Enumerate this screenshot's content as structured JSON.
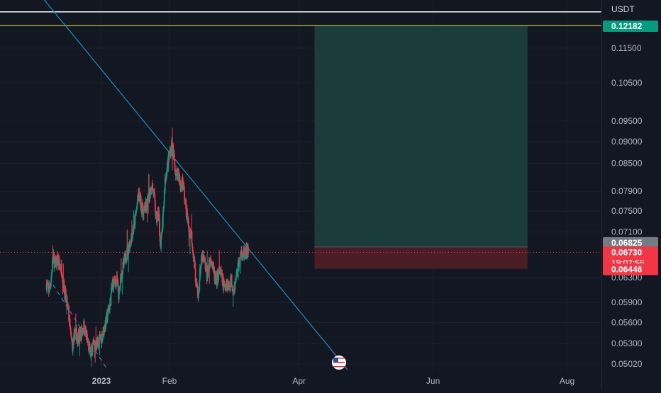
{
  "chart_data": {
    "type": "candlestick",
    "symbol_quote": "USDT",
    "y_scale": "log",
    "ylim": [
      0.0492,
      0.1305
    ],
    "y_ticks": [
      "0.11500",
      "0.10500",
      "0.09500",
      "0.09000",
      "0.08500",
      "0.07900",
      "0.07500",
      "0.07100",
      "0.06300",
      "0.05900",
      "0.05600",
      "0.05300",
      "0.05020"
    ],
    "x_ticks": [
      {
        "label": "2023",
        "date": "2023-01-01",
        "bold": true
      },
      {
        "label": "Feb",
        "date": "2023-02-01",
        "bold": false
      },
      {
        "label": "Apr",
        "date": "2023-04-01",
        "bold": false
      },
      {
        "label": "Jun",
        "date": "2023-06-01",
        "bold": false
      },
      {
        "label": "Aug",
        "date": "2023-08-01",
        "bold": false
      }
    ],
    "price_tags": [
      {
        "value": 0.12182,
        "label": "0.12182",
        "role": "take-profit",
        "color": "#089981"
      },
      {
        "value": 0.06825,
        "label": "0.06825",
        "role": "entry",
        "color": "#787b86"
      },
      {
        "value": 0.0673,
        "label": "0.06730",
        "sublabel": "19:07:55",
        "role": "last-price",
        "color": "#f23645"
      },
      {
        "value": 0.06446,
        "label": "0.06446",
        "role": "stop-loss",
        "color": "#f23645"
      }
    ],
    "horizontal_lines": [
      {
        "value": 0.1265,
        "color": "#ffffff"
      },
      {
        "value": 0.122,
        "color": "#e8e84a"
      }
    ],
    "position": {
      "start_date": "2023-04-08",
      "end_date": "2023-07-14",
      "entry": 0.06825,
      "target": 0.12182,
      "stop": 0.06446,
      "target_color": "#1a3c3a",
      "stop_color": "#4a1c24"
    },
    "trendlines": [
      {
        "from": {
          "date": "2022-11-24",
          "price": 0.142
        },
        "to": {
          "date": "2023-04-23",
          "price": 0.0495
        },
        "color": "#2196d3",
        "style": "solid"
      },
      {
        "from": {
          "date": "2022-12-10",
          "price": 0.0618
        },
        "to": {
          "date": "2023-01-03",
          "price": 0.0498
        },
        "color": "#2196d3",
        "style": "dashed"
      }
    ],
    "candles": {
      "timeframe": "4h",
      "first_date": "2022-12-07",
      "up_color": "#089981",
      "down_color": "#f23645",
      "anchors": [
        [
          "2022-12-07",
          0.062
        ],
        [
          "2022-12-08",
          0.0608
        ],
        [
          "2022-12-09",
          0.0625
        ],
        [
          "2022-12-10",
          0.0665
        ],
        [
          "2022-12-11",
          0.065
        ],
        [
          "2022-12-12",
          0.0662
        ],
        [
          "2022-12-13",
          0.0648
        ],
        [
          "2022-12-14",
          0.0645
        ],
        [
          "2022-12-15",
          0.0612
        ],
        [
          "2022-12-17",
          0.0575
        ],
        [
          "2022-12-18",
          0.054
        ],
        [
          "2022-12-19",
          0.0525
        ],
        [
          "2022-12-20",
          0.0548
        ],
        [
          "2022-12-21",
          0.0538
        ],
        [
          "2022-12-23",
          0.0545
        ],
        [
          "2022-12-24",
          0.0555
        ],
        [
          "2022-12-26",
          0.0528
        ],
        [
          "2022-12-27",
          0.0515
        ],
        [
          "2022-12-28",
          0.0525
        ],
        [
          "2022-12-30",
          0.053
        ],
        [
          "2023-01-01",
          0.0538
        ],
        [
          "2023-01-03",
          0.056
        ],
        [
          "2023-01-05",
          0.059
        ],
        [
          "2023-01-06",
          0.062
        ],
        [
          "2023-01-08",
          0.0625
        ],
        [
          "2023-01-09",
          0.06
        ],
        [
          "2023-01-10",
          0.0635
        ],
        [
          "2023-01-12",
          0.0665
        ],
        [
          "2023-01-14",
          0.069
        ],
        [
          "2023-01-16",
          0.0725
        ],
        [
          "2023-01-18",
          0.0785
        ],
        [
          "2023-01-20",
          0.0745
        ],
        [
          "2023-01-22",
          0.0765
        ],
        [
          "2023-01-24",
          0.0805
        ],
        [
          "2023-01-25",
          0.0778
        ],
        [
          "2023-01-26",
          0.073
        ],
        [
          "2023-01-27",
          0.075
        ],
        [
          "2023-01-28",
          0.068
        ],
        [
          "2023-01-29",
          0.0735
        ],
        [
          "2023-01-30",
          0.0815
        ],
        [
          "2023-02-01",
          0.087
        ],
        [
          "2023-02-02",
          0.0895
        ],
        [
          "2023-02-03",
          0.0862
        ],
        [
          "2023-02-04",
          0.0825
        ],
        [
          "2023-02-05",
          0.0835
        ],
        [
          "2023-02-06",
          0.0795
        ],
        [
          "2023-02-07",
          0.0815
        ],
        [
          "2023-02-08",
          0.0772
        ],
        [
          "2023-02-09",
          0.074
        ],
        [
          "2023-02-10",
          0.0712
        ],
        [
          "2023-02-11",
          0.0705
        ],
        [
          "2023-02-12",
          0.0665
        ],
        [
          "2023-02-13",
          0.0625
        ],
        [
          "2023-02-14",
          0.0595
        ],
        [
          "2023-02-15",
          0.0645
        ],
        [
          "2023-02-16",
          0.0665
        ],
        [
          "2023-02-17",
          0.0655
        ],
        [
          "2023-02-18",
          0.0635
        ],
        [
          "2023-02-19",
          0.065
        ],
        [
          "2023-02-20",
          0.0665
        ],
        [
          "2023-02-21",
          0.064
        ],
        [
          "2023-02-22",
          0.0622
        ],
        [
          "2023-02-23",
          0.0632
        ],
        [
          "2023-02-24",
          0.0642
        ],
        [
          "2023-02-25",
          0.0625
        ],
        [
          "2023-02-26",
          0.0612
        ],
        [
          "2023-02-27",
          0.0625
        ],
        [
          "2023-02-28",
          0.0615
        ],
        [
          "2023-03-01",
          0.0628
        ],
        [
          "2023-03-02",
          0.0612
        ],
        [
          "2023-03-03",
          0.0622
        ],
        [
          "2023-03-04",
          0.0648
        ],
        [
          "2023-03-05",
          0.066
        ],
        [
          "2023-03-06",
          0.0675
        ],
        [
          "2023-03-07",
          0.0668
        ],
        [
          "2023-03-08",
          0.0675
        ],
        [
          "2023-03-09",
          0.0672
        ]
      ]
    }
  }
}
